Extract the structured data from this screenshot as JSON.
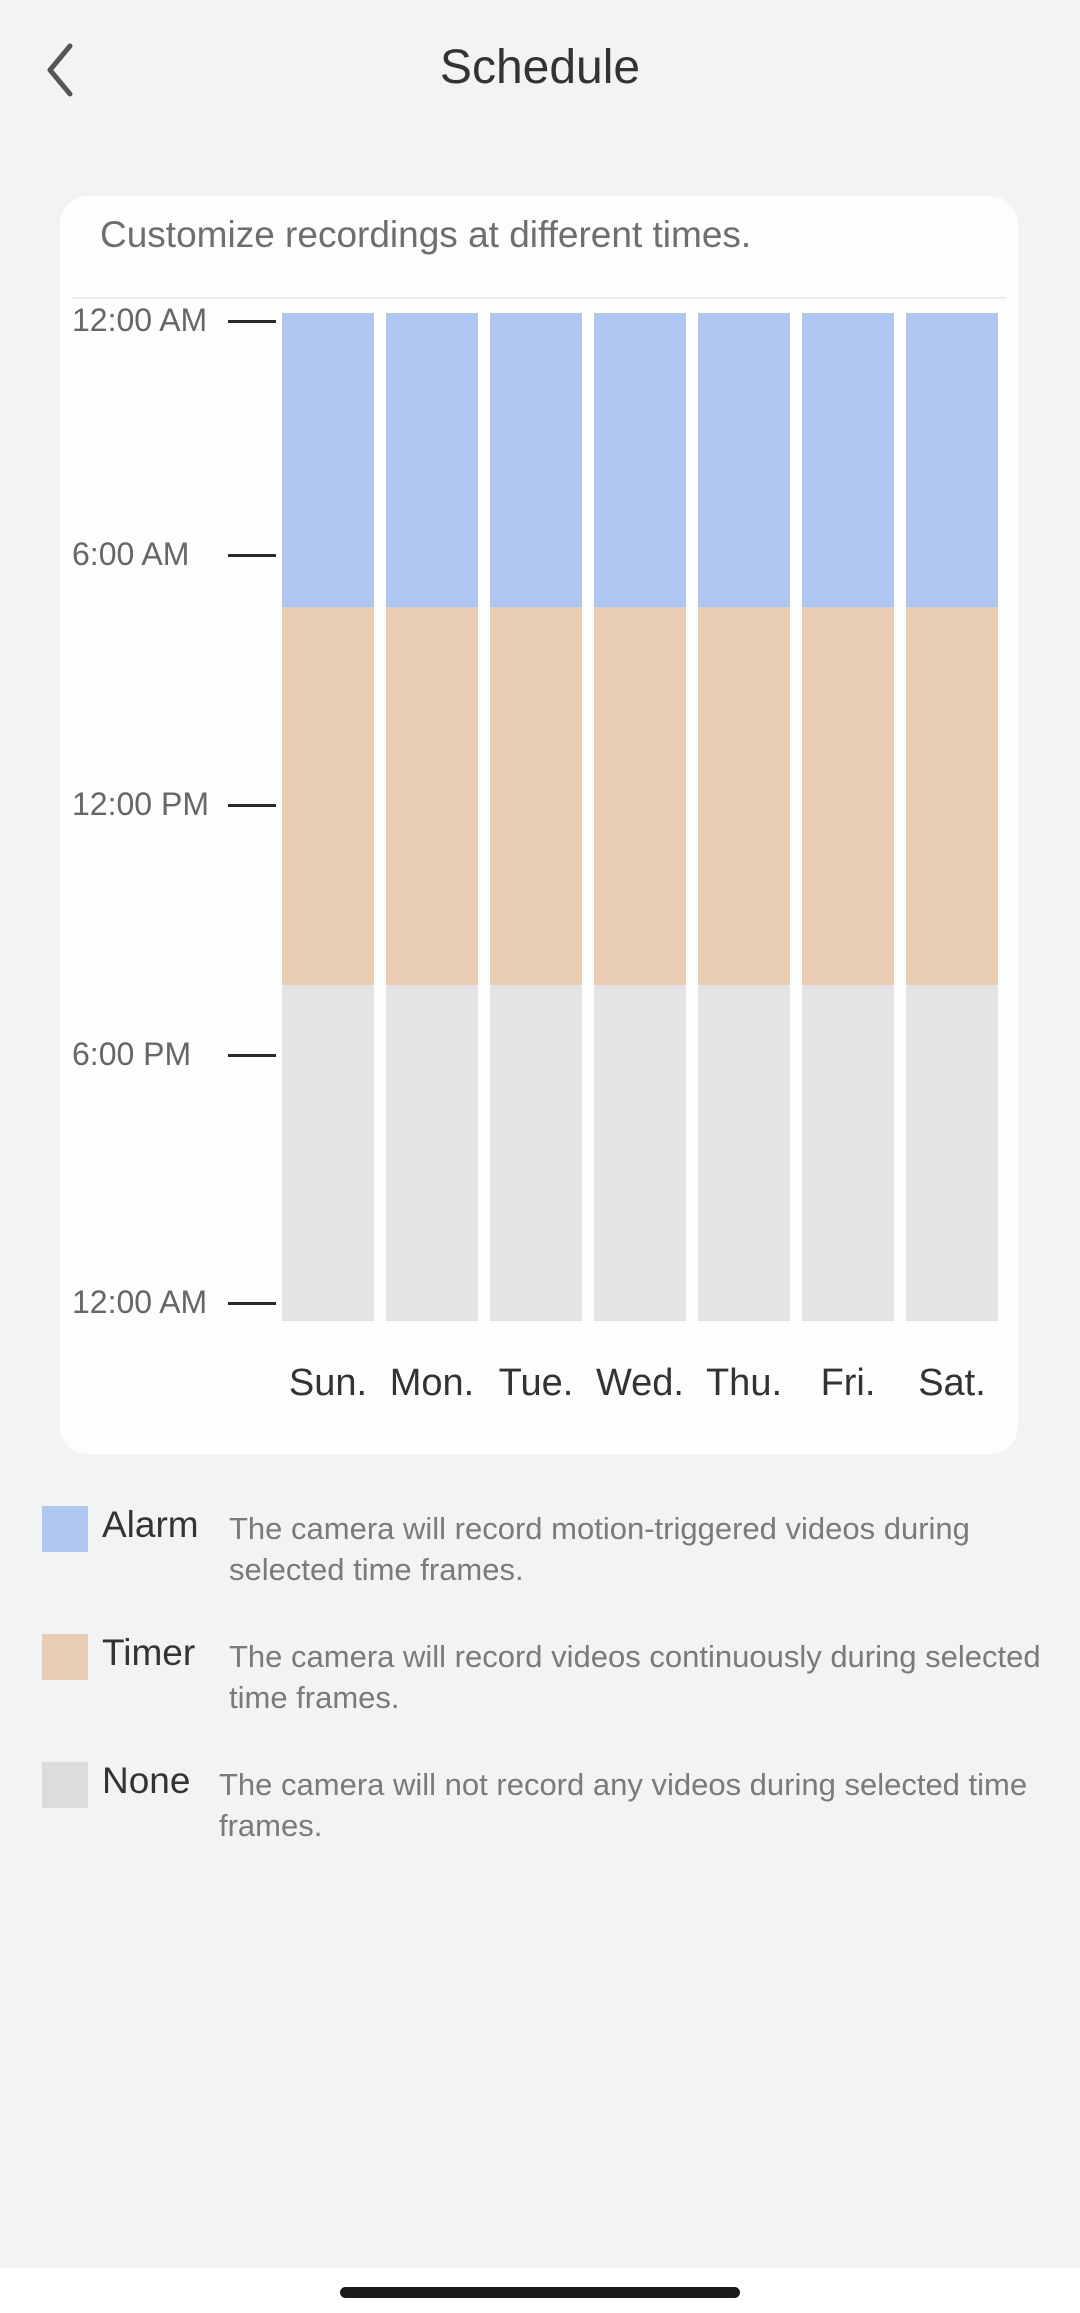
{
  "header": {
    "title": "Schedule",
    "back_icon": "chevron-left-icon"
  },
  "card": {
    "description": "Customize recordings at different times."
  },
  "chart_data": {
    "type": "bar",
    "stacked": true,
    "categories": [
      "Sun.",
      "Mon.",
      "Tue.",
      "Wed.",
      "Thu.",
      "Fri.",
      "Sat."
    ],
    "y_tick_labels": [
      "12:00 AM",
      "6:00 AM",
      "12:00 PM",
      "6:00 PM",
      "12:00 AM"
    ],
    "y_axis_hours": [
      0,
      6,
      12,
      18,
      24
    ],
    "ylim_hours": [
      0,
      24
    ],
    "series": [
      {
        "name": "Alarm",
        "start_hour": 0,
        "end_hour": 7,
        "color": "#afc6f3"
      },
      {
        "name": "Timer",
        "start_hour": 7,
        "end_hour": 16,
        "color": "#e9cdb4"
      },
      {
        "name": "None",
        "start_hour": 16,
        "end_hour": 24,
        "color": "#e3e3e5"
      }
    ],
    "grid": false
  },
  "legend": [
    {
      "name": "Alarm",
      "color": "#afc6f3",
      "description": "The camera will record motion-triggered videos during selected time frames."
    },
    {
      "name": "Timer",
      "color": "#e9cdb4",
      "description": "The camera will record videos continuously during selected time frames."
    },
    {
      "name": "None",
      "color": "#dcdcdc",
      "description": "The camera will not record any videos during selected time frames."
    }
  ]
}
